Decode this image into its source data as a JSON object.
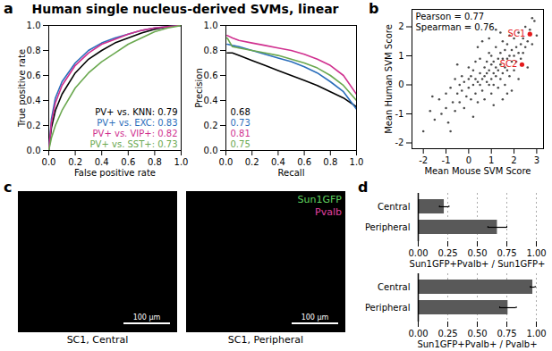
{
  "chart_data": [
    {
      "panel": "a",
      "type": "line",
      "title": "Human single nucleus-derived SVMs, linear",
      "xlabel": "False positive rate",
      "ylabel": "True positive rate",
      "xlim": [
        0,
        1
      ],
      "ylim": [
        0,
        1
      ],
      "xticks": [
        {
          "value": 0,
          "label": "0.0"
        },
        {
          "value": 0.2,
          "label": "0.2"
        },
        {
          "value": 0.4,
          "label": "0.4"
        },
        {
          "value": 0.6,
          "label": "0.6"
        },
        {
          "value": 0.8,
          "label": "0.8"
        },
        {
          "value": 1,
          "label": "1.0"
        }
      ],
      "yticks": [
        {
          "value": 0,
          "label": "0.0"
        },
        {
          "value": 0.2,
          "label": "0.2"
        },
        {
          "value": 0.4,
          "label": "0.4"
        },
        {
          "value": 0.6,
          "label": "0.6"
        },
        {
          "value": 0.8,
          "label": "0.8"
        },
        {
          "value": 1,
          "label": "1.0"
        }
      ],
      "legend": "bottom-right",
      "grid": false,
      "series": [
        {
          "name": "PV+ vs. KNN: 0.79",
          "color": "#000000",
          "x": [
            0,
            0.02,
            0.05,
            0.1,
            0.2,
            0.3,
            0.4,
            0.5,
            0.6,
            0.7,
            0.8,
            0.9,
            1
          ],
          "y": [
            0,
            0.18,
            0.32,
            0.45,
            0.62,
            0.73,
            0.8,
            0.86,
            0.9,
            0.94,
            0.97,
            0.99,
            1
          ]
        },
        {
          "name": "PV+ vs. EXC: 0.83",
          "color": "#2a6ebb",
          "x": [
            0,
            0.02,
            0.05,
            0.1,
            0.2,
            0.3,
            0.4,
            0.5,
            0.6,
            0.7,
            0.8,
            0.9,
            1
          ],
          "y": [
            0,
            0.25,
            0.42,
            0.55,
            0.7,
            0.8,
            0.86,
            0.9,
            0.93,
            0.96,
            0.98,
            0.99,
            1
          ]
        },
        {
          "name": "PV+ vs. VIP+: 0.82",
          "color": "#d0308f",
          "x": [
            0,
            0.02,
            0.05,
            0.1,
            0.2,
            0.3,
            0.4,
            0.5,
            0.6,
            0.7,
            0.8,
            0.9,
            1
          ],
          "y": [
            0,
            0.22,
            0.38,
            0.52,
            0.68,
            0.78,
            0.85,
            0.89,
            0.93,
            0.96,
            0.98,
            0.99,
            1
          ]
        },
        {
          "name": "PV+ vs. SST+: 0.73",
          "color": "#6aa84f",
          "x": [
            0,
            0.02,
            0.05,
            0.1,
            0.2,
            0.3,
            0.4,
            0.5,
            0.6,
            0.7,
            0.8,
            0.9,
            1
          ],
          "y": [
            0,
            0.1,
            0.2,
            0.32,
            0.5,
            0.62,
            0.71,
            0.78,
            0.85,
            0.9,
            0.95,
            0.98,
            1
          ]
        }
      ]
    },
    {
      "type": "line",
      "xlabel": "Recall",
      "ylabel": "Precision",
      "xlim": [
        0,
        1
      ],
      "ylim": [
        0,
        1
      ],
      "xticks": [
        {
          "value": 0,
          "label": "0.0"
        },
        {
          "value": 0.2,
          "label": "0.2"
        },
        {
          "value": 0.4,
          "label": "0.4"
        },
        {
          "value": 0.6,
          "label": "0.6"
        },
        {
          "value": 0.8,
          "label": "0.8"
        },
        {
          "value": 1,
          "label": "1.0"
        }
      ],
      "yticks": [
        {
          "value": 0,
          "label": "0.0"
        },
        {
          "value": 0.2,
          "label": "0.2"
        },
        {
          "value": 0.4,
          "label": "0.4"
        },
        {
          "value": 0.6,
          "label": "0.6"
        },
        {
          "value": 0.8,
          "label": "0.8"
        },
        {
          "value": 1,
          "label": "1.0"
        }
      ],
      "legend": "bottom-left",
      "grid": false,
      "series": [
        {
          "name": "0.68",
          "color": "#000000",
          "x": [
            0.01,
            0.05,
            0.1,
            0.2,
            0.3,
            0.4,
            0.5,
            0.6,
            0.7,
            0.8,
            0.9,
            1
          ],
          "y": [
            0.78,
            0.78,
            0.76,
            0.72,
            0.68,
            0.64,
            0.6,
            0.56,
            0.52,
            0.47,
            0.42,
            0.35
          ]
        },
        {
          "name": "0.73",
          "color": "#2a6ebb",
          "x": [
            0.01,
            0.05,
            0.1,
            0.2,
            0.3,
            0.4,
            0.5,
            0.6,
            0.7,
            0.8,
            0.9,
            1
          ],
          "y": [
            0.85,
            0.84,
            0.83,
            0.8,
            0.77,
            0.74,
            0.71,
            0.67,
            0.62,
            0.55,
            0.47,
            0.33
          ]
        },
        {
          "name": "0.81",
          "color": "#d0308f",
          "x": [
            0.01,
            0.05,
            0.1,
            0.2,
            0.3,
            0.4,
            0.5,
            0.6,
            0.7,
            0.8,
            0.9,
            1
          ],
          "y": [
            0.92,
            0.9,
            0.88,
            0.86,
            0.84,
            0.82,
            0.8,
            0.77,
            0.73,
            0.68,
            0.6,
            0.45
          ]
        },
        {
          "name": "0.75",
          "color": "#6aa84f",
          "x": [
            0.01,
            0.05,
            0.1,
            0.2,
            0.3,
            0.4,
            0.5,
            0.6,
            0.7,
            0.8,
            0.9,
            1
          ],
          "y": [
            0.9,
            0.83,
            0.82,
            0.8,
            0.78,
            0.76,
            0.73,
            0.7,
            0.66,
            0.6,
            0.52,
            0.4
          ]
        }
      ]
    },
    {
      "panel": "b",
      "type": "scatter",
      "xlabel": "Mean Mouse SVM Score",
      "ylabel": "Mean Human SVM Score",
      "xlim": [
        -2.5,
        3.3
      ],
      "ylim": [
        -2.2,
        2.6
      ],
      "xticks": [
        -2,
        -1,
        0,
        1,
        2,
        3
      ],
      "yticks": [
        -2,
        -1,
        0,
        1,
        2
      ],
      "color": "#000000",
      "grid": false,
      "annotations": [
        "Pearson = 0.77",
        "Spearman = 0.76"
      ],
      "x": [
        -2.0,
        -1.7,
        -1.5,
        -1.3,
        -1.2,
        -1.0,
        -1.0,
        -0.9,
        -0.8,
        -0.7,
        -0.6,
        -0.6,
        -0.5,
        -0.4,
        -0.4,
        -0.3,
        -0.3,
        -0.2,
        -0.2,
        -0.1,
        0.0,
        0.0,
        0.0,
        0.1,
        0.1,
        0.2,
        0.2,
        0.3,
        0.3,
        0.3,
        0.4,
        0.4,
        0.5,
        0.5,
        0.5,
        0.6,
        0.6,
        0.7,
        0.7,
        0.7,
        0.8,
        0.8,
        0.8,
        0.9,
        0.9,
        0.9,
        1.0,
        1.0,
        1.0,
        1.0,
        1.1,
        1.1,
        1.1,
        1.2,
        1.2,
        1.2,
        1.3,
        1.3,
        1.3,
        1.4,
        1.4,
        1.4,
        1.5,
        1.5,
        1.5,
        1.6,
        1.6,
        1.6,
        1.7,
        1.7,
        1.7,
        1.8,
        1.8,
        1.8,
        1.9,
        1.9,
        2.0,
        2.0,
        2.0,
        2.1,
        2.1,
        2.2,
        2.2,
        2.3,
        2.3,
        2.4,
        2.4,
        2.5,
        2.5,
        2.6,
        2.7,
        2.8,
        2.9,
        3.0,
        1.1,
        0.4,
        1.9,
        0.6,
        2.6,
        -0.5,
        1.4,
        0.2,
        1.5,
        -1.6,
        2.2,
        0.9,
        1.2,
        -0.8,
        1.7,
        2.8
      ],
      "values": [
        -1.6,
        -0.9,
        -1.2,
        -0.5,
        -1.0,
        -0.3,
        -0.8,
        -1.3,
        -0.1,
        -0.6,
        0.2,
        -0.9,
        -0.3,
        0.0,
        -0.6,
        0.3,
        -0.2,
        -0.8,
        0.1,
        -0.4,
        0.2,
        -0.1,
        0.6,
        -0.5,
        0.3,
        0.0,
        0.5,
        -0.3,
        0.2,
        0.8,
        0.1,
        -0.6,
        0.4,
        0.0,
        0.9,
        0.2,
        -0.2,
        0.6,
        0.3,
        -0.5,
        0.1,
        0.8,
        0.4,
        1.1,
        0.0,
        0.5,
        0.7,
        0.2,
        -0.3,
        1.0,
        0.4,
        0.8,
        0.0,
        1.3,
        0.6,
        0.3,
        0.9,
        -0.1,
        0.5,
        1.1,
        0.7,
        0.2,
        0.9,
        1.5,
        0.4,
        0.6,
        1.2,
        0.0,
        0.9,
        1.4,
        0.5,
        1.0,
        0.3,
        1.7,
        0.8,
        1.2,
        1.0,
        0.5,
        1.6,
        1.3,
        0.8,
        1.1,
        1.8,
        0.9,
        1.4,
        1.6,
        1.1,
        2.0,
        1.3,
        1.5,
        1.9,
        1.4,
        2.2,
        1.7,
        -0.7,
        1.3,
        -0.2,
        1.5,
        0.6,
        0.7,
        1.8,
        -1.1,
        -0.5,
        -0.4,
        0.2,
        1.6,
        1.9,
        -1.6,
        -0.3,
        2.3
      ],
      "highlights": [
        {
          "label": "SC1",
          "x": 2.7,
          "y": 1.75,
          "color": "#e41a1c"
        },
        {
          "label": "SC2",
          "x": 2.35,
          "y": 0.7,
          "color": "#e41a1c"
        }
      ]
    },
    {
      "panel": "c",
      "type": "image",
      "images": [
        {
          "caption": "SC1, Central"
        },
        {
          "caption": "SC1, Peripheral"
        }
      ],
      "channels": [
        {
          "name": "Sun1GFP",
          "color": "#5fd35f"
        },
        {
          "name": "Pvalb",
          "color": "#e040a0"
        }
      ],
      "scale_bar": "100 µm"
    },
    {
      "panel": "d",
      "type": "bar",
      "orientation": "horizontal",
      "color": "#595959",
      "grid": true,
      "categories": [
        "Central",
        "Peripheral"
      ],
      "values": [
        0.22,
        0.67
      ],
      "errors": [
        0.04,
        0.08
      ],
      "xlabel": "Sun1GFP+Pvalb+ / Sun1GFP+",
      "xlim": [
        0,
        1
      ],
      "xticks": [
        {
          "value": 0,
          "label": "0.00"
        },
        {
          "value": 0.25,
          "label": "0.25"
        },
        {
          "value": 0.5,
          "label": "0.50"
        },
        {
          "value": 0.75,
          "label": "0.75"
        },
        {
          "value": 1,
          "label": "1.00"
        }
      ]
    },
    {
      "type": "bar",
      "orientation": "horizontal",
      "color": "#595959",
      "grid": true,
      "categories": [
        "Central",
        "Peripheral"
      ],
      "values": [
        0.97,
        0.76
      ],
      "errors": [
        0.02,
        0.07
      ],
      "xlabel": "Sun1GFP+Pvalb+ / Pvalb+",
      "xlim": [
        0,
        1
      ],
      "xticks": [
        {
          "value": 0,
          "label": "0.00"
        },
        {
          "value": 0.25,
          "label": "0.25"
        },
        {
          "value": 0.5,
          "label": "0.50"
        },
        {
          "value": 0.75,
          "label": "0.75"
        },
        {
          "value": 1,
          "label": "1.00"
        }
      ]
    }
  ]
}
